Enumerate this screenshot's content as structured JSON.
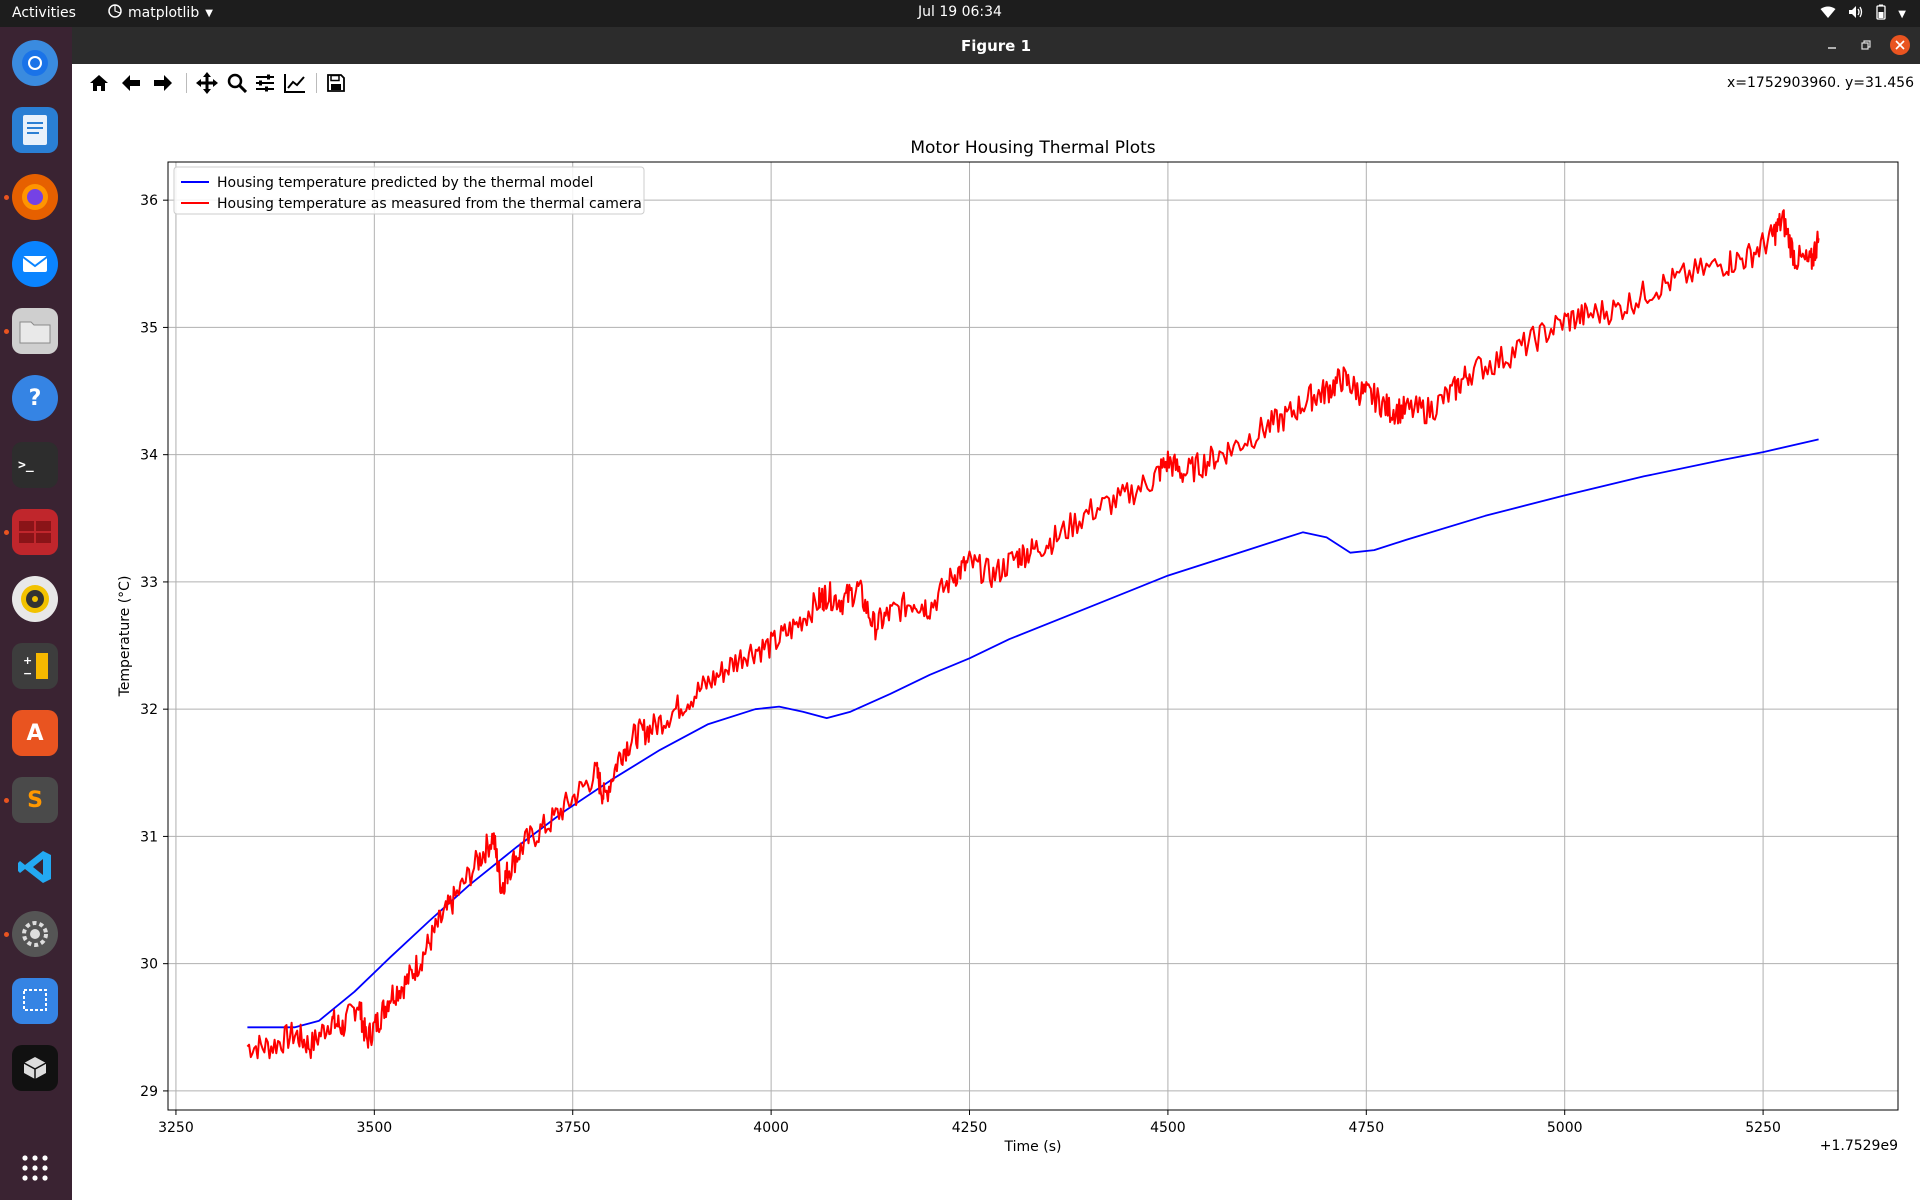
{
  "topbar": {
    "activities": "Activities",
    "app_name": "matplotlib",
    "clock": "Jul 19  06:34"
  },
  "window": {
    "title": "Figure 1"
  },
  "toolbar": {
    "buttons": [
      "home-icon",
      "back-icon",
      "forward-icon",
      "pan-icon",
      "zoom-icon",
      "configure-subplots-icon",
      "edit-axis-icon",
      "save-icon"
    ],
    "coords": "x=1752903960. y=31.456"
  },
  "dock": {
    "apps": [
      "chromium-icon",
      "libreoffice-writer-icon",
      "firefox-icon",
      "thunderbird-icon",
      "files-icon",
      "help-icon",
      "terminal-icon",
      "workspace-icon",
      "rhythmbox-icon",
      "calculator-icon",
      "app-center-icon",
      "sublime-text-icon",
      "vscode-icon",
      "settings-icon",
      "screenshot-icon",
      "package-icon",
      "show-apps-icon"
    ]
  },
  "chart_data": {
    "type": "line",
    "title": "Motor Housing Thermal Plots",
    "xlabel": "Time (s)",
    "ylabel": "Temperature (°C)",
    "x_offset_label": "+1.7529e9",
    "xlim": [
      3240,
      5420
    ],
    "ylim": [
      28.85,
      36.3
    ],
    "xticks": [
      3250,
      3500,
      3750,
      4000,
      4250,
      4500,
      4750,
      5000,
      5250
    ],
    "yticks": [
      29,
      30,
      31,
      32,
      33,
      34,
      35,
      36
    ],
    "grid": true,
    "legend_position": "upper-left",
    "series": [
      {
        "name": "Housing temperature predicted by the thermal model",
        "color": "#0000ff",
        "x": [
          3340,
          3400,
          3430,
          3475,
          3520,
          3570,
          3620,
          3680,
          3740,
          3800,
          3860,
          3920,
          3980,
          4010,
          4040,
          4070,
          4100,
          4150,
          4200,
          4250,
          4300,
          4400,
          4500,
          4600,
          4640,
          4670,
          4700,
          4730,
          4760,
          4800,
          4900,
          5000,
          5100,
          5200,
          5250,
          5320
        ],
        "y": [
          29.5,
          29.5,
          29.55,
          29.78,
          30.05,
          30.34,
          30.62,
          30.92,
          31.2,
          31.45,
          31.68,
          31.88,
          32.0,
          32.02,
          31.98,
          31.93,
          31.98,
          32.12,
          32.27,
          32.4,
          32.55,
          32.8,
          33.05,
          33.25,
          33.33,
          33.39,
          33.35,
          33.23,
          33.25,
          33.33,
          33.52,
          33.68,
          33.83,
          33.96,
          34.02,
          34.12
        ]
      },
      {
        "name": "Housing temperature as measured from the thermal camera",
        "color": "#ff0000",
        "x": [
          3340,
          3370,
          3400,
          3420,
          3445,
          3460,
          3480,
          3490,
          3505,
          3520,
          3540,
          3560,
          3580,
          3600,
          3630,
          3650,
          3660,
          3670,
          3690,
          3720,
          3750,
          3780,
          3790,
          3810,
          3830,
          3850,
          3880,
          3910,
          3940,
          3970,
          4000,
          4030,
          4060,
          4070,
          4090,
          4110,
          4130,
          4150,
          4180,
          4200,
          4230,
          4250,
          4280,
          4310,
          4330,
          4360,
          4400,
          4440,
          4480,
          4500,
          4520,
          4550,
          4580,
          4620,
          4650,
          4680,
          4700,
          4720,
          4740,
          4760,
          4780,
          4800,
          4830,
          4860,
          4880,
          4920,
          4960,
          5000,
          5030,
          5070,
          5110,
          5150,
          5200,
          5230,
          5260,
          5275,
          5290,
          5310,
          5320
        ],
        "y": [
          29.35,
          29.35,
          29.45,
          29.35,
          29.55,
          29.5,
          29.7,
          29.4,
          29.55,
          29.75,
          29.85,
          30.05,
          30.3,
          30.5,
          30.8,
          31.0,
          30.6,
          30.75,
          30.95,
          31.1,
          31.3,
          31.5,
          31.3,
          31.65,
          31.8,
          31.85,
          32.0,
          32.15,
          32.3,
          32.45,
          32.5,
          32.65,
          32.85,
          32.9,
          32.85,
          32.95,
          32.65,
          32.75,
          32.85,
          32.8,
          33.05,
          33.15,
          33.05,
          33.2,
          33.25,
          33.35,
          33.55,
          33.65,
          33.8,
          33.95,
          33.85,
          33.95,
          34.05,
          34.2,
          34.3,
          34.45,
          34.5,
          34.6,
          34.5,
          34.45,
          34.35,
          34.35,
          34.35,
          34.5,
          34.65,
          34.75,
          34.9,
          35.05,
          35.1,
          35.15,
          35.3,
          35.4,
          35.5,
          35.55,
          35.7,
          35.85,
          35.55,
          35.5,
          35.7
        ]
      }
    ]
  }
}
